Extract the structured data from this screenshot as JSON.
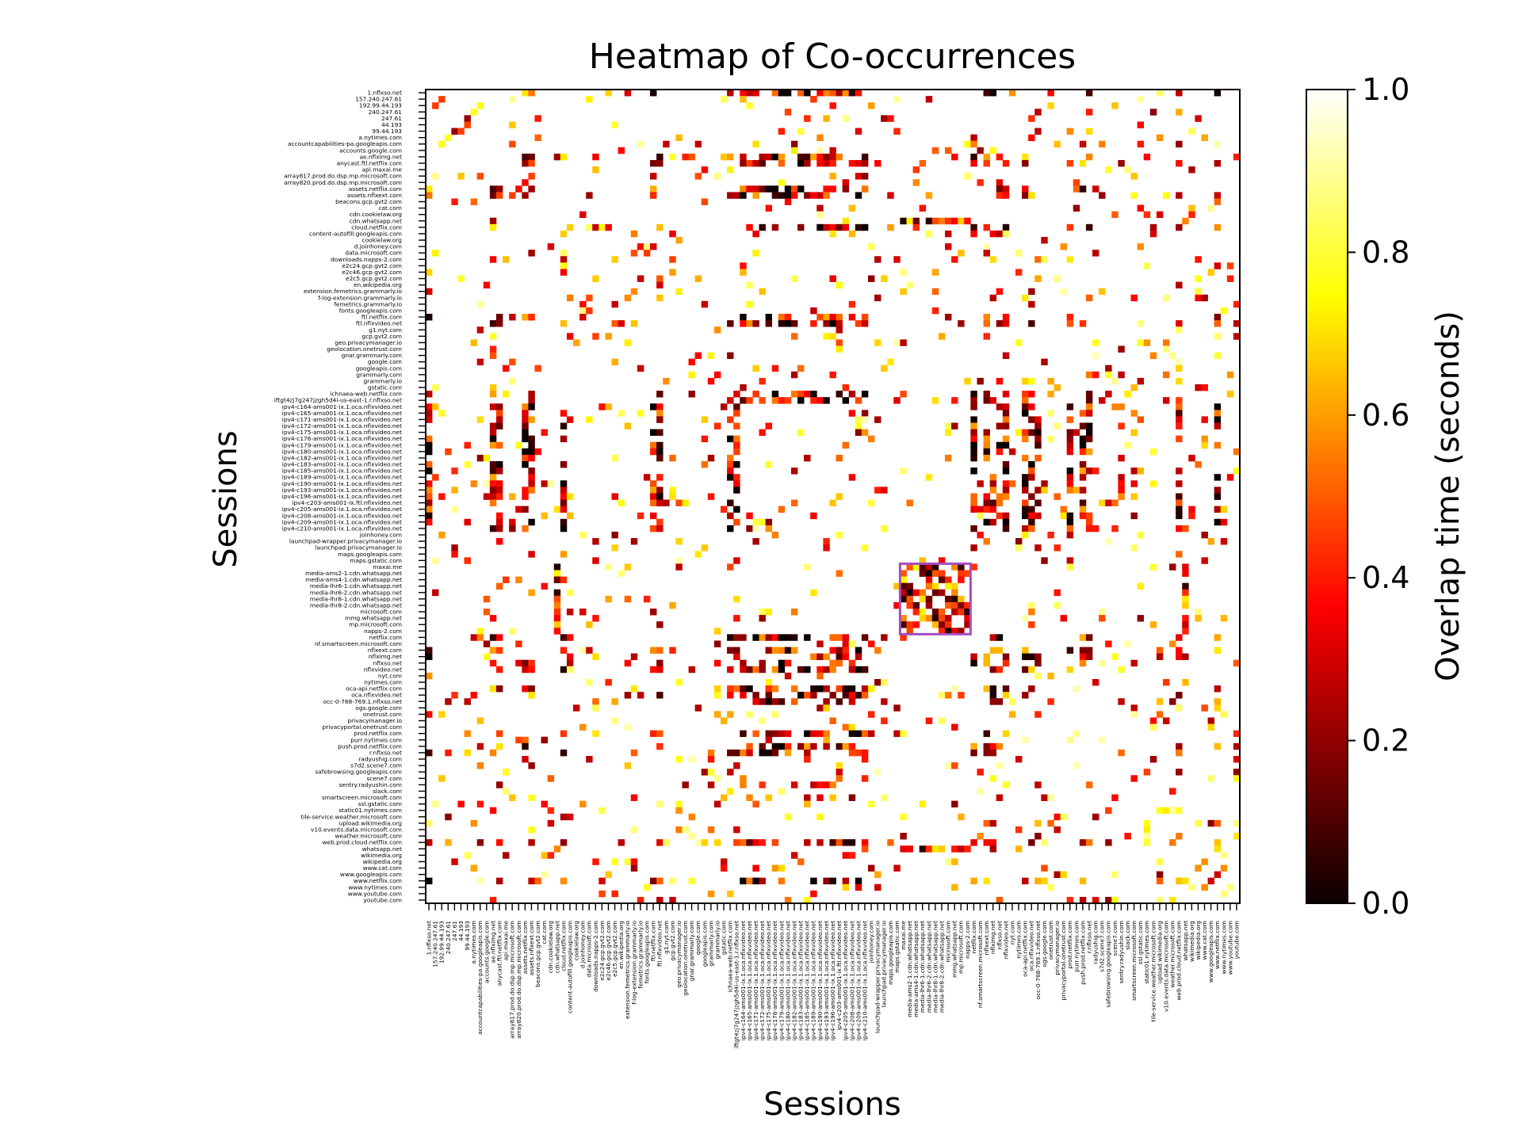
{
  "chart_data": {
    "type": "heatmap",
    "title": "Heatmap of Co-occurrences",
    "xlabel": "Sessions",
    "ylabel": "Sessions",
    "colorbar": {
      "label": "Overlap time (seconds)",
      "colormap": "hot",
      "vmin": 0.0,
      "vmax": 1.0,
      "ticks": [
        0.0,
        0.2,
        0.4,
        0.6,
        0.8,
        1.0
      ],
      "tick_labels": [
        "0.0",
        "0.2",
        "0.4",
        "0.6",
        "0.8",
        "1.0"
      ]
    },
    "highlight_box": {
      "color": "#a64dbf",
      "rows": [
        "maxai.me",
        "napps-2.com"
      ],
      "cols": [
        "maxai.me",
        "napps-2.com"
      ]
    },
    "sessions": [
      "1.nflxso.net",
      "157.240.247.61",
      "192.99.44.193",
      "240.247.61",
      "247.61",
      "44.193",
      "99.44.193",
      "a.nytimes.com",
      "accountcapabilities-pa.googleapis.com",
      "accounts.google.com",
      "ae.nflximg.net",
      "anycast.ftl.netflix.com",
      "api.maxai.me",
      "array817.prod.do.dsp.mp.microsoft.com",
      "array820.prod.do.dsp.mp.microsoft.com",
      "assets.netflix.com",
      "assets.nflxext.com",
      "beacons.gcp.gvt2.com",
      "cat.com",
      "cdn.cookielaw.org",
      "cdn.whatsapp.net",
      "cloud.netflix.com",
      "content-autofill.googleapis.com",
      "cookielaw.org",
      "d.joinhoney.com",
      "data.microsoft.com",
      "downloads.napps-2.com",
      "e2c24.gcp.gvt2.com",
      "e2c46.gcp.gvt2.com",
      "e2c5.gcp.gvt2.com",
      "en.wikipedia.org",
      "extension.femetrics.grammarly.io",
      "f-log-extension.grammarly.io",
      "femetrics.grammarly.io",
      "fonts.googleapis.com",
      "ftl.netflix.com",
      "ftl.nflxvideo.net",
      "g1.nyt.com",
      "gcp.gvt2.com",
      "geo.privacymanager.io",
      "geolocation.onetrust.com",
      "gnar.grammarly.com",
      "google.com",
      "googleapis.com",
      "grammarly.com",
      "grammarly.io",
      "gstatic.com",
      "ichnaea-web.netflix.com",
      "iftgt4zj7g247jzgh5d4i-us-east-1.r.nflxso.net",
      "ipv4-c164-ams001-ix.1.oca.nflxvideo.net",
      "ipv4-c165-ams001-ix.1.oca.nflxvideo.net",
      "ipv4-c171-ams001-ix.1.oca.nflxvideo.net",
      "ipv4-c172-ams001-ix.1.oca.nflxvideo.net",
      "ipv4-c175-ams001-ix.1.oca.nflxvideo.net",
      "ipv4-c176-ams001-ix.1.oca.nflxvideo.net",
      "ipv4-c179-ams001-ix.1.oca.nflxvideo.net",
      "ipv4-c180-ams001-ix.1.oca.nflxvideo.net",
      "ipv4-c182-ams001-ix.1.oca.nflxvideo.net",
      "ipv4-c183-ams001-ix.1.oca.nflxvideo.net",
      "ipv4-c185-ams001-ix.1.oca.nflxvideo.net",
      "ipv4-c189-ams001-ix.1.oca.nflxvideo.net",
      "ipv4-c190-ams001-ix.1.oca.nflxvideo.net",
      "ipv4-c193-ams001-ix.1.oca.nflxvideo.net",
      "ipv4-c196-ams001-ix.1.oca.nflxvideo.net",
      "ipv4-c203-ams001-ix.ftl.nflxvideo.net",
      "ipv4-c205-ams001-ix.1.oca.nflxvideo.net",
      "ipv4-c208-ams001-ix.1.oca.nflxvideo.net",
      "ipv4-c209-ams001-ix.1.oca.nflxvideo.net",
      "ipv4-c210-ams001-ix.1.oca.nflxvideo.net",
      "joinhoney.com",
      "launchpad-wrapper.privacymanager.io",
      "launchpad.privacymanager.io",
      "maps.googleapis.com",
      "maps.gstatic.com",
      "maxai.me",
      "media-ams2-1.cdn.whatsapp.net",
      "media-ams4-1.cdn.whatsapp.net",
      "media-lhr6-1.cdn.whatsapp.net",
      "media-lhr6-2.cdn.whatsapp.net",
      "media-lhr8-1.cdn.whatsapp.net",
      "media-lhr8-2.cdn.whatsapp.net",
      "microsoft.com",
      "mmg.whatsapp.net",
      "mp.microsoft.com",
      "napps-2.com",
      "netflix.com",
      "nf.smartscreen.microsoft.com",
      "nflxext.com",
      "nflximg.net",
      "nflxso.net",
      "nflxvideo.net",
      "nyt.com",
      "nytimes.com",
      "oca-api.netflix.com",
      "oca.nflxvideo.net",
      "occ-0-768-769.1.nflxso.net",
      "ogs.google.com",
      "onetrust.com",
      "privacymanager.io",
      "privacyportal.onetrust.com",
      "prod.netflix.com",
      "purr.nytimes.com",
      "push.prod.netflix.com",
      "r.nflxso.net",
      "radyushig.com",
      "s7d2.scene7.com",
      "safebrowsing.googleapis.com",
      "scene7.com",
      "sentry.radyushin.com",
      "slack.com",
      "smartscreen.microsoft.com",
      "ssl.gstatic.com",
      "static01.nytimes.com",
      "tile-service.weather.microsoft.com",
      "upload.wikimedia.org",
      "v10.events.data.microsoft.com",
      "weather.microsoft.com",
      "web.prod.cloud.netflix.com",
      "whatsapp.net",
      "wikimedia.org",
      "wikipedia.org",
      "www.cat.com",
      "www.googleapis.com",
      "www.netflix.com",
      "www.nytimes.com",
      "www.youtube.com",
      "youtube.com"
    ]
  }
}
